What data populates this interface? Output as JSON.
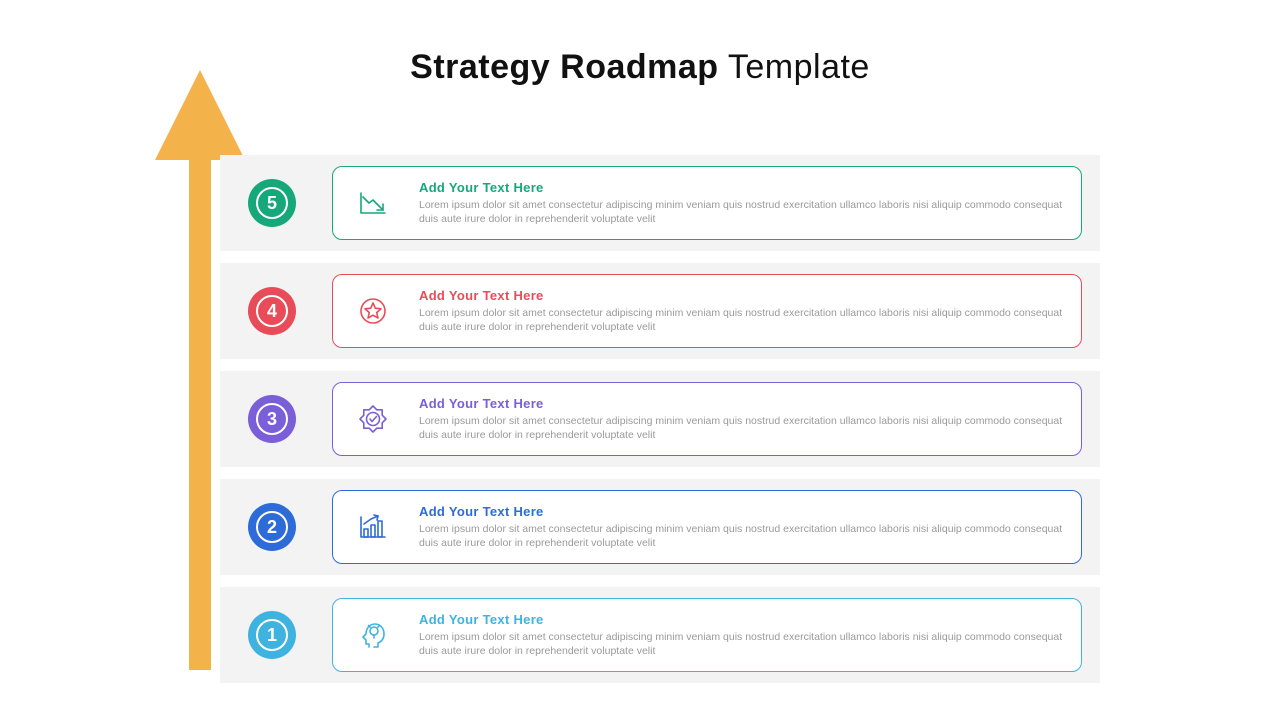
{
  "title_bold": "Strategy Roadmap",
  "title_light": " Template",
  "background_color": "#ffffff",
  "row_background": "#f3f3f4",
  "body_text_color": "#9a9a9a",
  "arrow": {
    "color": "#f4b24a",
    "head_width": 90,
    "shaft_width": 22,
    "total_height": 600
  },
  "lorem": "Lorem ipsum dolor sit amet consectetur adipiscing minim veniam quis nostrud exercitation ullamco laboris nisi aliquip commodo consequat duis aute irure dolor in reprehenderit  voluptate velit",
  "items": [
    {
      "number": "5",
      "color": "#16a879",
      "heading": "Add Your Text Here",
      "icon": "chart-down"
    },
    {
      "number": "4",
      "color": "#e84c58",
      "heading": "Add Your Text Here",
      "icon": "star-badge"
    },
    {
      "number": "3",
      "color": "#7a5fd8",
      "heading": "Add Your Text Here",
      "icon": "seal-check"
    },
    {
      "number": "2",
      "color": "#2d6cd8",
      "heading": "Add Your Text Here",
      "icon": "chart-up"
    },
    {
      "number": "1",
      "color": "#3fb3e0",
      "heading": "Add Your Text Here",
      "icon": "head-bulb"
    }
  ]
}
